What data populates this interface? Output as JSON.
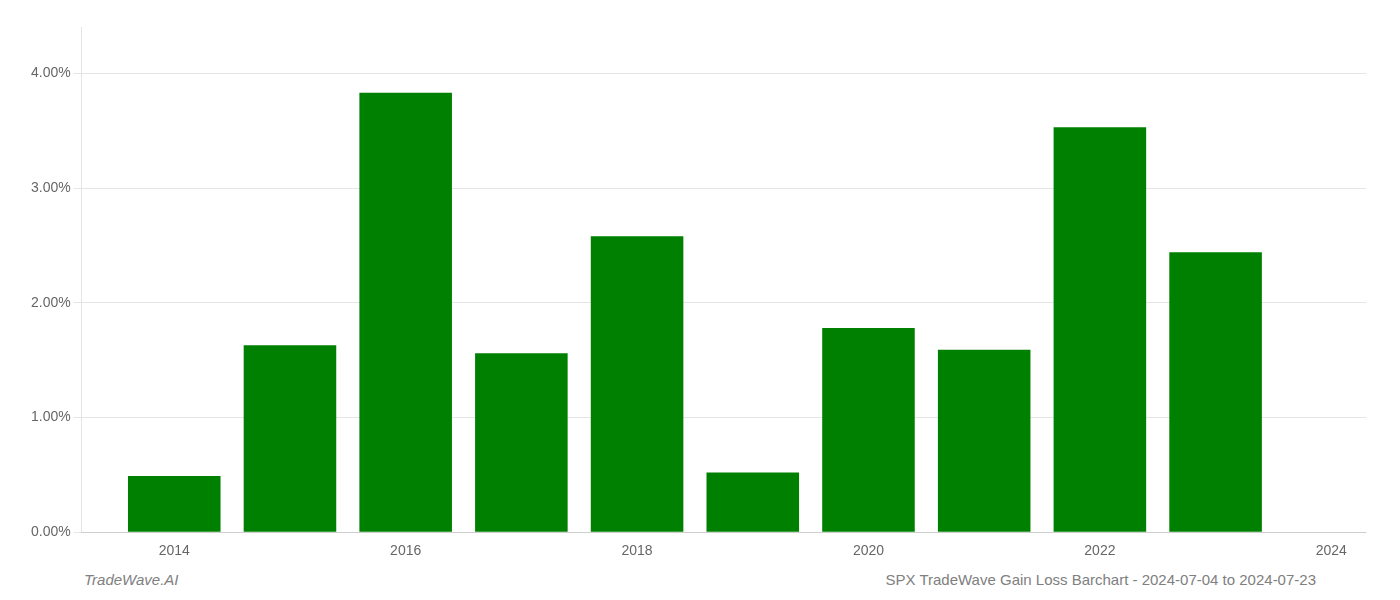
{
  "chart_data": {
    "type": "bar",
    "x": [
      2014,
      2015,
      2016,
      2017,
      2018,
      2019,
      2020,
      2021,
      2022,
      2023
    ],
    "values": [
      0.0049,
      0.0163,
      0.0383,
      0.0156,
      0.0258,
      0.0052,
      0.0178,
      0.0159,
      0.0353,
      0.0244
    ],
    "color": "#008000",
    "xlim": [
      2013.2,
      2024.3
    ],
    "xticks": [
      2014,
      2016,
      2018,
      2020,
      2022,
      2024
    ],
    "ylim": [
      0,
      0.044
    ],
    "yticks": [
      {
        "value": 0.0,
        "label": "0.00%"
      },
      {
        "value": 0.01,
        "label": "1.00%"
      },
      {
        "value": 0.02,
        "label": "2.00%"
      },
      {
        "value": 0.03,
        "label": "3.00%"
      },
      {
        "value": 0.04,
        "label": "4.00%"
      }
    ],
    "grid": true,
    "annotations": [
      "TradeWave.AI",
      "SPX TradeWave Gain Loss Barchart - 2024-07-04 to 2024-07-23"
    ]
  }
}
